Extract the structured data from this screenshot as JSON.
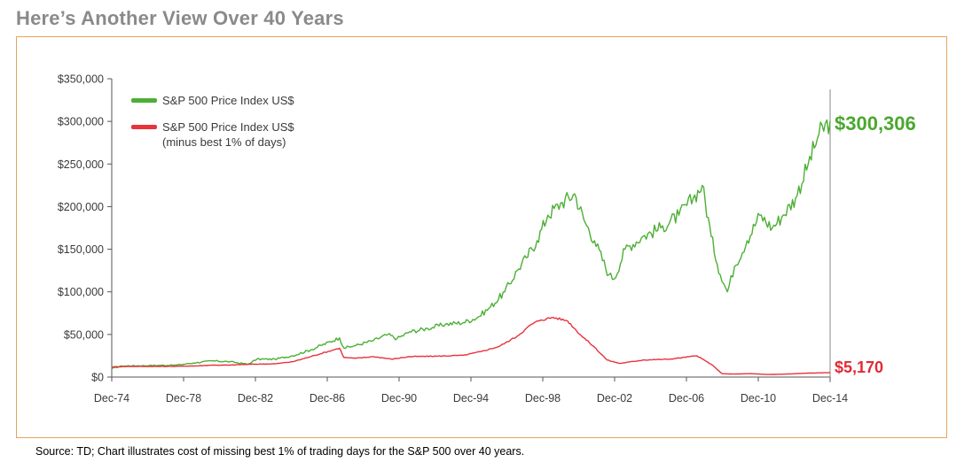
{
  "slide": {
    "title": "Here’s Another View Over 40 Years",
    "source": "Source: TD; Chart illustrates cost of missing best 1% of trading days for the S&P 500 over 40 years."
  },
  "colors": {
    "green": "#4caf35",
    "red": "#e8323c",
    "border": "#e8a45a",
    "axis": "#555555",
    "end_green": "#4aa82f",
    "end_red": "#e02b35"
  },
  "chart_data": {
    "type": "line",
    "title": "",
    "xlabel": "",
    "ylabel": "",
    "x_ticks": [
      "Dec-74",
      "Dec-78",
      "Dec-82",
      "Dec-86",
      "Dec-90",
      "Dec-94",
      "Dec-98",
      "Dec-02",
      "Dec-06",
      "Dec-10",
      "Dec-14"
    ],
    "y_ticks": [
      "$0",
      "$50,000",
      "$100,000",
      "$150,000",
      "$200,000",
      "$250,000",
      "$300,000",
      "$350,000"
    ],
    "xlim": [
      1974.92,
      2014.92
    ],
    "ylim": [
      0,
      350000
    ],
    "grid": false,
    "legend_position": "top-left",
    "series": [
      {
        "name": "S&P 500 Price Index US$",
        "color": "#4caf35",
        "end_label": "$300,306",
        "points": [
          [
            1974.92,
            10000
          ],
          [
            1975.5,
            13000
          ],
          [
            1977,
            13500
          ],
          [
            1978.5,
            14000
          ],
          [
            1979.5,
            16500
          ],
          [
            1980.5,
            19000
          ],
          [
            1981.5,
            18000
          ],
          [
            1982.5,
            15000
          ],
          [
            1983,
            21000
          ],
          [
            1984,
            21000
          ],
          [
            1985,
            25000
          ],
          [
            1986,
            32000
          ],
          [
            1987.6,
            46000
          ],
          [
            1987.85,
            34000
          ],
          [
            1988.5,
            37000
          ],
          [
            1989.5,
            43000
          ],
          [
            1990.3,
            50000
          ],
          [
            1990.8,
            45000
          ],
          [
            1991.5,
            53000
          ],
          [
            1992.5,
            57000
          ],
          [
            1993.5,
            62000
          ],
          [
            1994.5,
            64000
          ],
          [
            1995.3,
            70000
          ],
          [
            1996,
            82000
          ],
          [
            1996.8,
            100000
          ],
          [
            1997.5,
            125000
          ],
          [
            1998,
            140000
          ],
          [
            1998.6,
            160000
          ],
          [
            1999.2,
            190000
          ],
          [
            2000,
            205000
          ],
          [
            2000.7,
            215000
          ],
          [
            2001.2,
            185000
          ],
          [
            2001.8,
            160000
          ],
          [
            2002.6,
            120000
          ],
          [
            2002.9,
            115000
          ],
          [
            2003.5,
            150000
          ],
          [
            2004.5,
            165000
          ],
          [
            2005.5,
            175000
          ],
          [
            2006.5,
            190000
          ],
          [
            2007.3,
            210000
          ],
          [
            2007.8,
            225000
          ],
          [
            2008.3,
            165000
          ],
          [
            2008.8,
            120000
          ],
          [
            2009.2,
            100000
          ],
          [
            2009.6,
            130000
          ],
          [
            2010.3,
            160000
          ],
          [
            2011,
            190000
          ],
          [
            2011.7,
            175000
          ],
          [
            2012.3,
            190000
          ],
          [
            2013,
            210000
          ],
          [
            2013.7,
            250000
          ],
          [
            2014.3,
            285000
          ],
          [
            2014.92,
            300306
          ]
        ]
      },
      {
        "name": "S&P 500 Price Index US$ (minus best 1% of days)",
        "label_lines": [
          "S&P 500 Price Index US$",
          "(minus best 1% of days)"
        ],
        "color": "#e8323c",
        "end_label": "$5,170",
        "points": [
          [
            1974.92,
            12000
          ],
          [
            1976,
            12500
          ],
          [
            1978,
            12500
          ],
          [
            1979.5,
            13000
          ],
          [
            1980.5,
            14000
          ],
          [
            1981.5,
            14000
          ],
          [
            1982.5,
            15000
          ],
          [
            1984,
            15500
          ],
          [
            1985,
            18000
          ],
          [
            1986,
            24000
          ],
          [
            1987.6,
            34000
          ],
          [
            1987.85,
            23000
          ],
          [
            1988.5,
            22000
          ],
          [
            1989.5,
            24000
          ],
          [
            1990.5,
            21000
          ],
          [
            1991.5,
            24000
          ],
          [
            1993,
            24500
          ],
          [
            1994.5,
            25500
          ],
          [
            1995.5,
            30000
          ],
          [
            1996.5,
            36000
          ],
          [
            1997.5,
            48000
          ],
          [
            1998.3,
            62000
          ],
          [
            1998.8,
            67000
          ],
          [
            1999.5,
            70000
          ],
          [
            2000.3,
            66000
          ],
          [
            2001,
            50000
          ],
          [
            2001.8,
            35000
          ],
          [
            2002.5,
            20000
          ],
          [
            2003.2,
            16000
          ],
          [
            2004.5,
            20000
          ],
          [
            2006,
            21000
          ],
          [
            2007.5,
            25000
          ],
          [
            2008.3,
            15000
          ],
          [
            2008.9,
            4000
          ],
          [
            2009.5,
            3500
          ],
          [
            2010.5,
            4000
          ],
          [
            2011.5,
            3000
          ],
          [
            2012.5,
            3500
          ],
          [
            2013.5,
            4500
          ],
          [
            2014.92,
            5170
          ]
        ]
      }
    ]
  }
}
